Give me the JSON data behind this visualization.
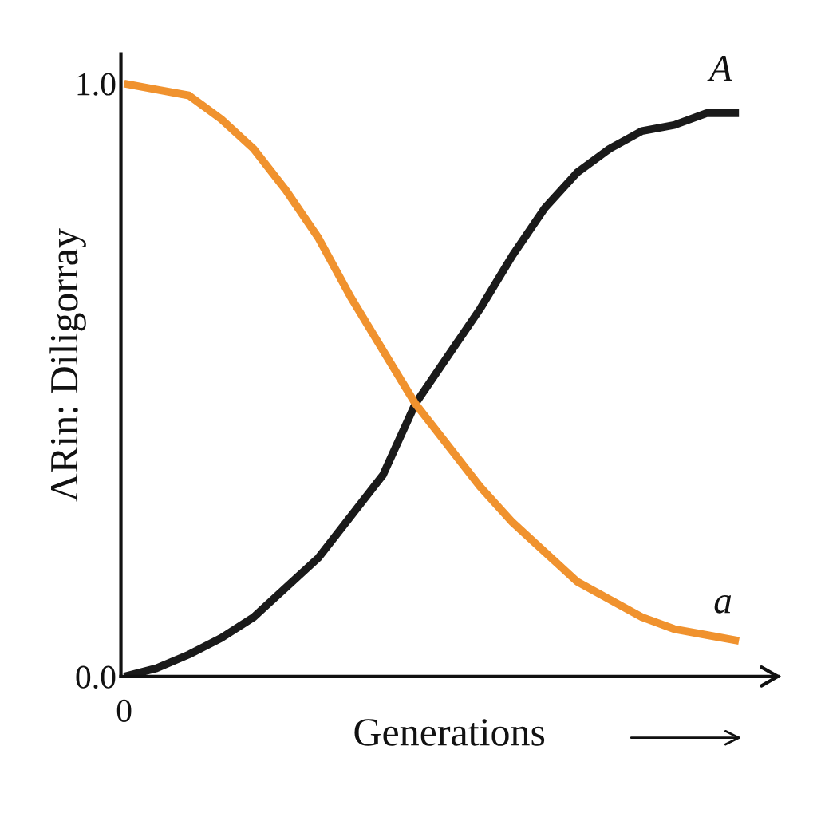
{
  "chart_data": {
    "type": "line",
    "xlabel": "Generations",
    "ylabel": "ΛRin: Diligorray",
    "categories": [
      "0",
      null,
      null,
      null,
      null,
      null,
      null,
      null,
      null,
      null,
      null,
      null,
      null,
      null,
      null,
      null,
      null,
      null,
      null,
      null
    ],
    "series": [
      {
        "name": "A",
        "color": "#1a1a1a",
        "values": [
          0,
          0.014,
          0.037,
          0.065,
          0.1,
          0.15,
          0.2,
          0.27,
          0.34,
          0.46,
          0.54,
          0.62,
          0.71,
          0.79,
          0.85,
          0.89,
          0.92,
          0.93,
          0.95,
          0.95
        ]
      },
      {
        "name": "a",
        "color": "#f0922e",
        "values": [
          1.0,
          0.99,
          0.98,
          0.94,
          0.89,
          0.82,
          0.74,
          0.64,
          0.55,
          0.46,
          0.39,
          0.32,
          0.26,
          0.21,
          0.16,
          0.13,
          0.1,
          0.08,
          0.07,
          0.06
        ]
      }
    ],
    "ylim": [
      0,
      1.05
    ],
    "yticks": [
      {
        "value": 0,
        "label": "0.0"
      },
      {
        "value": 1,
        "label": "1.0"
      }
    ],
    "grid": false,
    "legend": false,
    "marker": "none",
    "line_style": "solid"
  }
}
